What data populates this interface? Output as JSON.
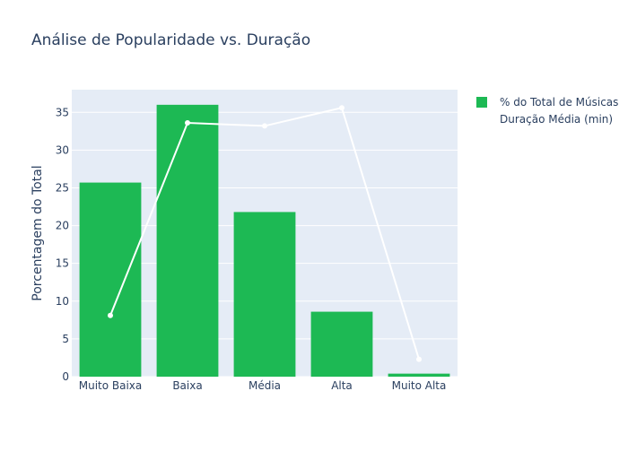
{
  "chart_data": {
    "type": "bar",
    "title": "Análise de Popularidade vs. Duração",
    "xlabel": "",
    "ylabel": "Porcentagem do Total",
    "categories": [
      "Muito Baixa",
      "Baixa",
      "Média",
      "Alta",
      "Muito Alta"
    ],
    "ylim": [
      0,
      38
    ],
    "yticks": [
      0,
      5,
      10,
      15,
      20,
      25,
      30,
      35
    ],
    "grid": true,
    "legend_position": "top-right",
    "series": [
      {
        "name": "% do Total de Músicas",
        "type": "bar",
        "color": "#1db954",
        "values": [
          25.7,
          36.0,
          21.8,
          8.6,
          0.4
        ]
      },
      {
        "name": "Duração Média (min)",
        "type": "line",
        "color": "#ffffff",
        "values": [
          8.1,
          33.6,
          33.2,
          35.6,
          2.3
        ]
      }
    ]
  }
}
